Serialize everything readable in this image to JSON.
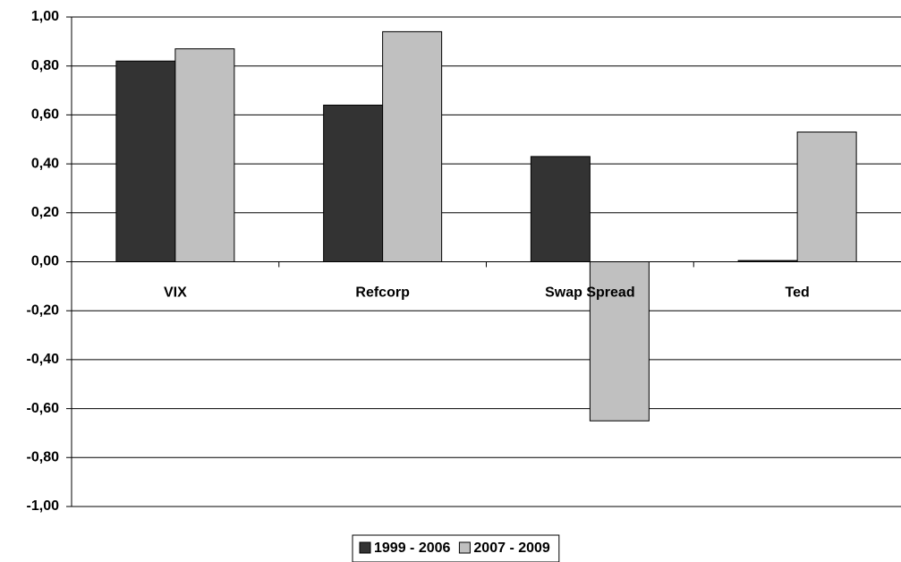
{
  "chart_data": {
    "type": "bar",
    "categories": [
      "VIX",
      "Refcorp",
      "Swap Spread",
      "Ted"
    ],
    "series": [
      {
        "name": "1999 - 2006",
        "color": "#333333",
        "values": [
          0.82,
          0.64,
          0.43,
          0.005
        ]
      },
      {
        "name": "2007 - 2009",
        "color": "#c0c0c0",
        "values": [
          0.87,
          0.94,
          -0.65,
          0.53
        ]
      }
    ],
    "ylim": [
      -1,
      1
    ],
    "yticks": [
      {
        "value": -1,
        "label": "-1,00"
      },
      {
        "value": -0.8,
        "label": "-0,80"
      },
      {
        "value": -0.6,
        "label": "-0,60"
      },
      {
        "value": -0.4,
        "label": "-0,40"
      },
      {
        "value": -0.2,
        "label": "-0,20"
      },
      {
        "value": 0,
        "label": "0,00"
      },
      {
        "value": 0.2,
        "label": "0,20"
      },
      {
        "value": 0.4,
        "label": "0,40"
      },
      {
        "value": 0.6,
        "label": "0,60"
      },
      {
        "value": 0.8,
        "label": "0,80"
      },
      {
        "value": 1,
        "label": "1,00"
      }
    ],
    "grid": true,
    "legend": "bottom"
  }
}
